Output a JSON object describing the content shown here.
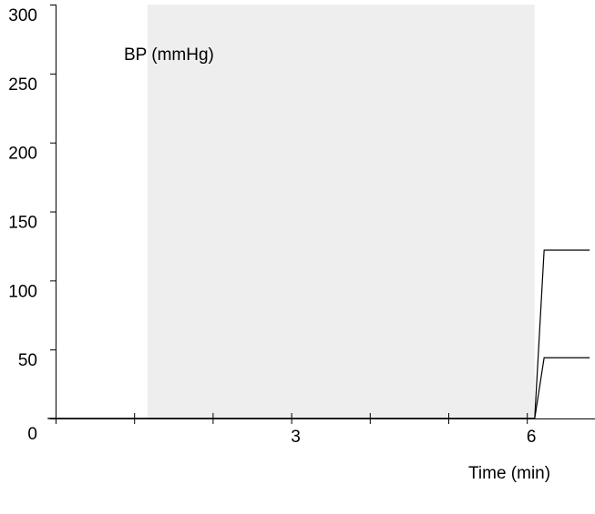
{
  "chart_data": {
    "type": "line",
    "title": "",
    "ylabel": "BP (mmHg)",
    "xlabel": "Time (min)",
    "ylim": [
      0,
      300
    ],
    "xlim": [
      -0.1,
      6.8
    ],
    "y_ticks": [
      0,
      50,
      100,
      150,
      200,
      250,
      300
    ],
    "y_tick_labels": [
      "0",
      "50",
      "100",
      "150",
      "200",
      "250",
      "300"
    ],
    "x_ticks": [
      0,
      1,
      2,
      3,
      4,
      5,
      6
    ],
    "x_tick_labels": {
      "3": "3",
      "6": "6"
    },
    "shaded_region": {
      "x_start": 1.17,
      "x_end": 6.1,
      "color": "#eeeeee"
    },
    "grid": false,
    "series": [
      {
        "x": [
          -0.1,
          6.1,
          6.22,
          6.8
        ],
        "values": [
          0,
          0,
          122,
          122
        ],
        "color": "#000000"
      },
      {
        "x": [
          -0.1,
          6.1,
          6.22,
          6.8
        ],
        "values": [
          0,
          0,
          44,
          44
        ],
        "color": "#000000"
      }
    ]
  }
}
